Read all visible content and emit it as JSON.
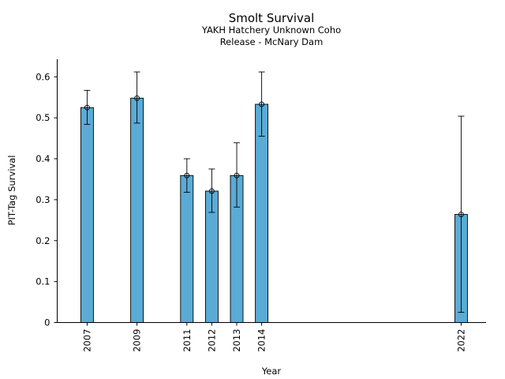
{
  "chart_data": {
    "type": "bar",
    "title": "Smolt Survival",
    "subtitle_lines": [
      "YAKH Hatchery Unknown Coho",
      "Release - McNary Dam"
    ],
    "xlabel": "Year",
    "ylabel": "PIT-Tag Survival",
    "x": [
      2007,
      2009,
      2011,
      2012,
      2013,
      2014,
      2022
    ],
    "categories": [
      "2007",
      "2009",
      "2011",
      "2012",
      "2013",
      "2014",
      "2022"
    ],
    "values": [
      0.525,
      0.548,
      0.359,
      0.321,
      0.359,
      0.533,
      0.264
    ],
    "error_lower": [
      0.484,
      0.487,
      0.318,
      0.269,
      0.282,
      0.455,
      0.025
    ],
    "error_upper": [
      0.567,
      0.612,
      0.4,
      0.375,
      0.439,
      0.612,
      0.504
    ],
    "ylim": [
      0,
      0.643
    ],
    "yticks": [
      0,
      0.1,
      0.2,
      0.3,
      0.4,
      0.5,
      0.6
    ],
    "ytick_labels": [
      "0",
      "0.1",
      "0.2",
      "0.3",
      "0.4",
      "0.5",
      "0.6"
    ],
    "xlim": [
      2005.8,
      2023.0
    ],
    "grid": false,
    "colors": {
      "bar_fill": "#5aabd6",
      "bar_edge": "#000000",
      "axis": "#000000",
      "text": "#000000"
    }
  }
}
